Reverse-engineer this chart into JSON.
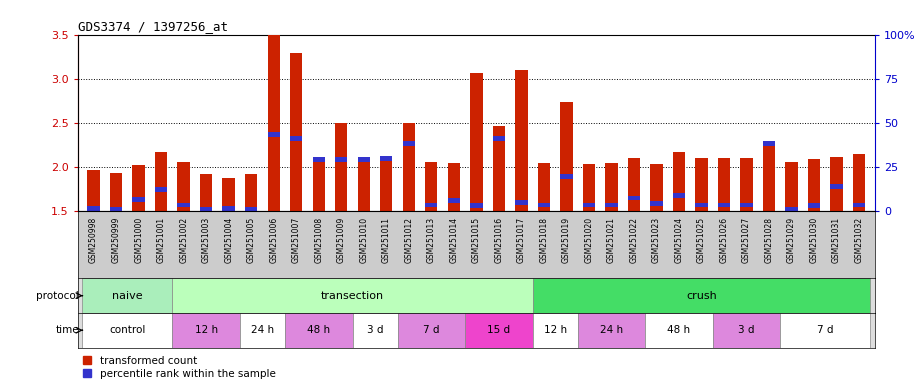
{
  "title": "GDS3374 / 1397256_at",
  "samples": [
    "GSM250998",
    "GSM250999",
    "GSM251000",
    "GSM251001",
    "GSM251002",
    "GSM251003",
    "GSM251004",
    "GSM251005",
    "GSM251006",
    "GSM251007",
    "GSM251008",
    "GSM251009",
    "GSM251010",
    "GSM251011",
    "GSM251012",
    "GSM251013",
    "GSM251014",
    "GSM251015",
    "GSM251016",
    "GSM251017",
    "GSM251018",
    "GSM251019",
    "GSM251020",
    "GSM251021",
    "GSM251022",
    "GSM251023",
    "GSM251024",
    "GSM251025",
    "GSM251026",
    "GSM251027",
    "GSM251028",
    "GSM251029",
    "GSM251030",
    "GSM251031",
    "GSM251032"
  ],
  "red_values": [
    1.97,
    1.93,
    2.02,
    2.17,
    2.06,
    1.92,
    1.88,
    1.92,
    3.49,
    3.29,
    2.09,
    2.5,
    2.1,
    2.11,
    2.5,
    2.06,
    2.05,
    3.06,
    2.47,
    3.1,
    2.05,
    2.74,
    2.03,
    2.05,
    2.1,
    2.04,
    2.17,
    2.1,
    2.1,
    2.1,
    2.26,
    2.06,
    2.09,
    2.11,
    2.15
  ],
  "blue_values": [
    1.53,
    1.52,
    1.63,
    1.75,
    1.57,
    1.52,
    1.53,
    1.52,
    2.37,
    2.32,
    2.09,
    2.09,
    2.09,
    2.1,
    2.27,
    1.57,
    1.62,
    1.56,
    2.32,
    1.6,
    1.57,
    1.89,
    1.57,
    1.57,
    1.65,
    1.59,
    1.68,
    1.57,
    1.57,
    1.57,
    2.27,
    1.52,
    1.56,
    1.78,
    1.57
  ],
  "ylim": [
    1.5,
    3.5
  ],
  "yticks_left": [
    1.5,
    2.0,
    2.5,
    3.0,
    3.5
  ],
  "yticks_right": [
    0,
    25,
    50,
    75,
    100
  ],
  "ytick_right_labels": [
    "0",
    "25",
    "50",
    "75",
    "100%"
  ],
  "protocol_groups": [
    {
      "label": "naive",
      "start": 0,
      "end": 4,
      "color": "#AAEEBB"
    },
    {
      "label": "transection",
      "start": 4,
      "end": 20,
      "color": "#BBFFBB"
    },
    {
      "label": "crush",
      "start": 20,
      "end": 35,
      "color": "#44DD66"
    }
  ],
  "time_groups": [
    {
      "label": "control",
      "start": 0,
      "end": 4,
      "color": "#FFFFFF"
    },
    {
      "label": "12 h",
      "start": 4,
      "end": 7,
      "color": "#DD88DD"
    },
    {
      "label": "24 h",
      "start": 7,
      "end": 9,
      "color": "#FFFFFF"
    },
    {
      "label": "48 h",
      "start": 9,
      "end": 12,
      "color": "#DD88DD"
    },
    {
      "label": "3 d",
      "start": 12,
      "end": 14,
      "color": "#FFFFFF"
    },
    {
      "label": "7 d",
      "start": 14,
      "end": 17,
      "color": "#DD88DD"
    },
    {
      "label": "15 d",
      "start": 17,
      "end": 20,
      "color": "#EE44CC"
    },
    {
      "label": "12 h",
      "start": 20,
      "end": 22,
      "color": "#FFFFFF"
    },
    {
      "label": "24 h",
      "start": 22,
      "end": 25,
      "color": "#DD88DD"
    },
    {
      "label": "48 h",
      "start": 25,
      "end": 28,
      "color": "#FFFFFF"
    },
    {
      "label": "3 d",
      "start": 28,
      "end": 31,
      "color": "#DD88DD"
    },
    {
      "label": "7 d",
      "start": 31,
      "end": 35,
      "color": "#FFFFFF"
    }
  ],
  "bar_width": 0.55,
  "bg_color": "#FFFFFF",
  "bar_color_red": "#CC2200",
  "bar_color_blue": "#3333CC",
  "legend_items": [
    "transformed count",
    "percentile rank within the sample"
  ],
  "ylabel_left_color": "#CC0000",
  "ylabel_right_color": "#0000CC",
  "label_area_bg": "#CCCCCC",
  "protocol_border": "#888888",
  "time_border": "#888888"
}
